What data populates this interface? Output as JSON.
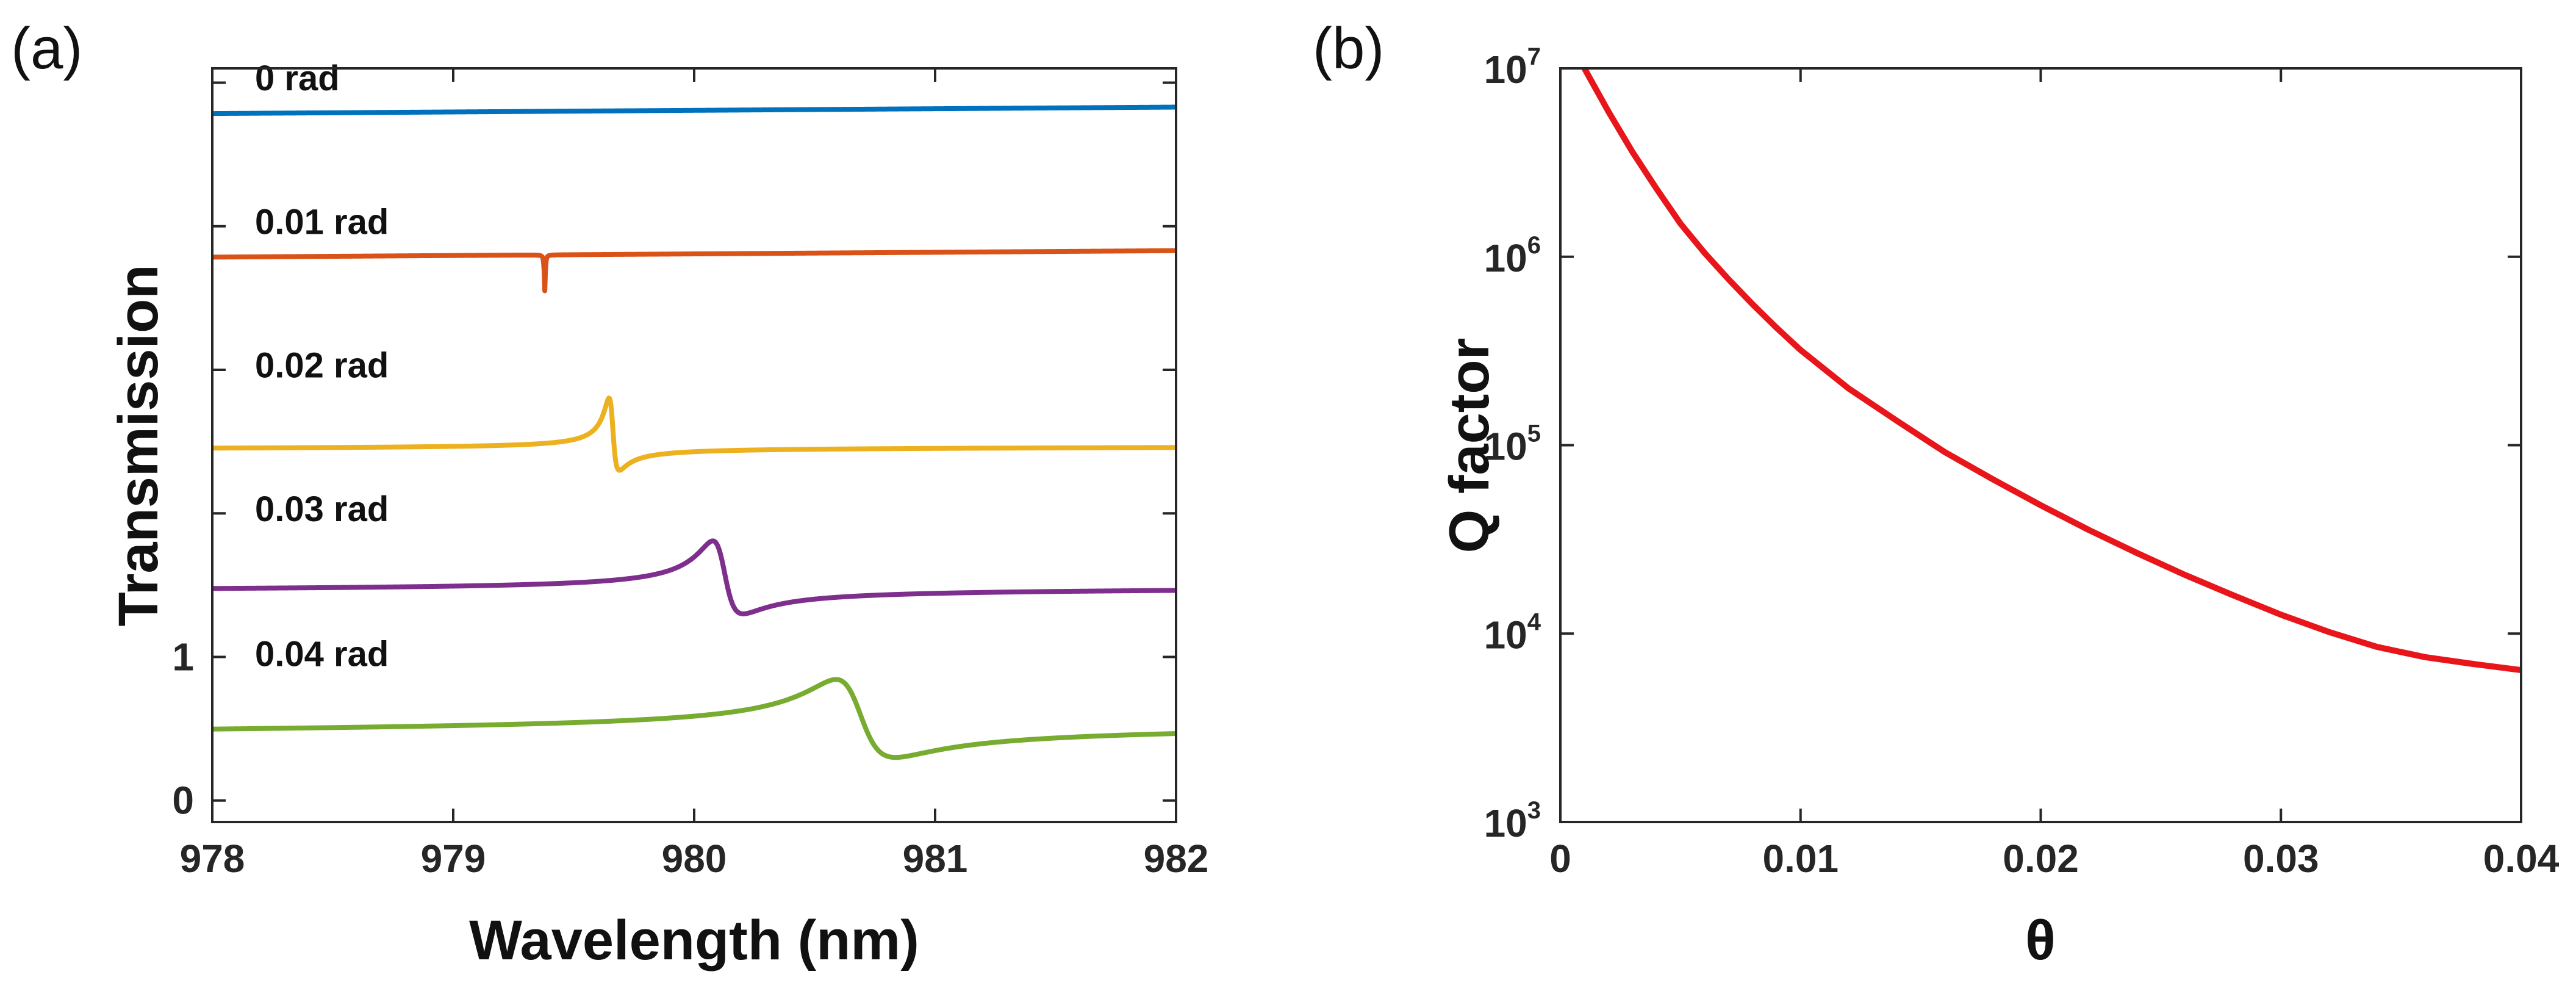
{
  "chart_data": [
    {
      "panel_label": "(a)",
      "type": "line",
      "xlabel": "Wavelength (nm)",
      "ylabel": "Transmission",
      "xlim": [
        978,
        982
      ],
      "ylim": [
        -0.15,
        5.1
      ],
      "xticks": [
        978,
        979,
        980,
        981,
        982
      ],
      "yticks": [
        0,
        1
      ],
      "grid": false,
      "series": [
        {
          "name": "0 rad",
          "color": "#0072BD",
          "offset": 4.3,
          "base_start": 0.97,
          "base_end": 1.06,
          "resonance": null,
          "width": null,
          "q": null,
          "dip_min": null
        },
        {
          "name": "0.01 rad",
          "color": "#D95319",
          "offset": 3.3,
          "base_start": 0.97,
          "base_end": 1.06,
          "resonance": 979.38,
          "width": 0.0025,
          "q": 0.0,
          "dip_min": 0.5
        },
        {
          "name": "0.02 rad",
          "color": "#EDB120",
          "offset": 2.3,
          "base_start": 0.97,
          "base_end": 1.06,
          "resonance": 979.66,
          "width": 0.02,
          "q": -1.5,
          "dip_min": 0.0
        },
        {
          "name": "0.03 rad",
          "color": "#7E2F8E",
          "offset": 1.3,
          "base_start": 0.97,
          "base_end": 1.06,
          "resonance": 980.12,
          "width": 0.06,
          "q": -1.4,
          "dip_min": 0.0
        },
        {
          "name": "0.04 rad",
          "color": "#77AC30",
          "offset": 0.3,
          "base_start": 0.95,
          "base_end": 1.16,
          "resonance": 980.68,
          "width": 0.12,
          "q": -1.3,
          "dip_min": 0.0
        }
      ]
    },
    {
      "panel_label": "(b)",
      "type": "line",
      "xlabel": "θ",
      "ylabel": "Q factor",
      "yscale": "log",
      "xlim": [
        0,
        0.04
      ],
      "ylim": [
        1000,
        10000000
      ],
      "xticks": [
        0,
        0.01,
        0.02,
        0.03,
        0.04
      ],
      "xtick_labels": [
        "0",
        "0.01",
        "0.02",
        "0.03",
        "0.04"
      ],
      "ytick_base": "10",
      "ytick_exponents": [
        "3",
        "4",
        "5",
        "6",
        "7"
      ],
      "grid": false,
      "series": [
        {
          "name": "Q factor",
          "color": "#E8161B",
          "x": [
            0.001,
            0.002,
            0.003,
            0.004,
            0.005,
            0.006,
            0.007,
            0.008,
            0.009,
            0.01,
            0.012,
            0.014,
            0.016,
            0.018,
            0.02,
            0.022,
            0.024,
            0.026,
            0.028,
            0.03,
            0.032,
            0.034,
            0.036,
            0.038,
            0.04
          ],
          "y": [
            10000000,
            5900000,
            3600000,
            2300000,
            1500000,
            1050000,
            760000,
            560000,
            420000,
            320000,
            200000,
            135000,
            92000,
            66000,
            48000,
            35500,
            26800,
            20500,
            16000,
            12600,
            10200,
            8500,
            7500,
            6900,
            6400
          ]
        }
      ]
    }
  ]
}
